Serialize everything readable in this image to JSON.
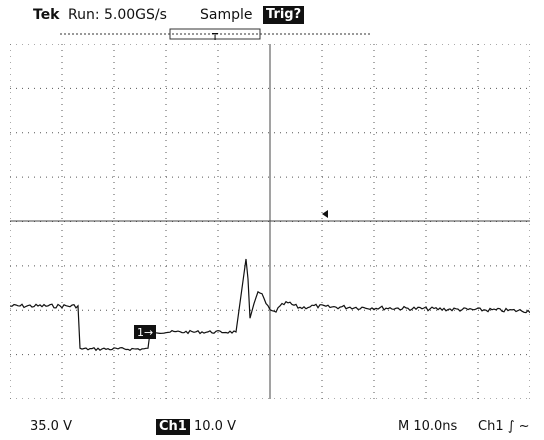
{
  "header": {
    "brand": "Tek",
    "run_state": "Run: 5.00GS/s",
    "acq_mode": "Sample",
    "trig_status": "Trig?"
  },
  "screen": {
    "grid_divisions_x": 10,
    "grid_divisions_y": 8,
    "ground_marker": "1→",
    "colors": {
      "trace": "#111111",
      "grid": "#555555",
      "background": "#ffffff"
    }
  },
  "footer": {
    "ch_scale_left": "35.0 V",
    "ch_badge": "Ch1",
    "ch_volts": "10.0 V",
    "timebase": "M 10.0ns",
    "trigger_source": "Ch1 ∫ ~"
  }
}
